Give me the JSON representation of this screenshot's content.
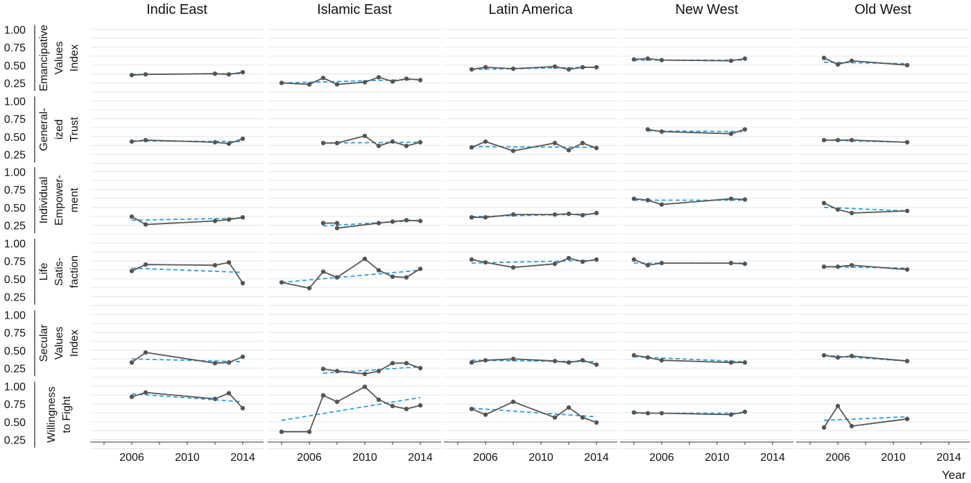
{
  "chart_data": {
    "type": "line",
    "xlabel": "Year",
    "ylim": [
      0.1,
      1.1
    ],
    "xlim": [
      2003,
      2015.5
    ],
    "x_ticks": [
      "2006",
      "2010",
      "2014"
    ],
    "y_ticks": [
      "1.00",
      "0.75",
      "0.50",
      "0.25"
    ],
    "regions": [
      "Indic East",
      "Islamic East",
      "Latin America",
      "New West",
      "Old West"
    ],
    "indicators": [
      [
        "Emancipative",
        "Values",
        "Index"
      ],
      [
        "General-",
        "ized",
        "Trust"
      ],
      [
        "Individual",
        "Empower-",
        "ment"
      ],
      [
        "Life",
        "Satis-",
        "faction"
      ],
      [
        "Secular",
        "Values",
        "Index"
      ],
      [
        "Willingness",
        "to Fight"
      ]
    ],
    "colors": {
      "observed": "#555555",
      "trend": "#2aa0d8"
    },
    "series": {
      "Indic East": [
        {
          "x": [
            2006,
            2007,
            2012,
            2013,
            2014
          ],
          "y": [
            0.36,
            0.37,
            0.38,
            0.37,
            0.4
          ],
          "trend": [
            [
              2006,
              0.37
            ],
            [
              2014,
              0.38
            ]
          ]
        },
        {
          "x": [
            2006,
            2007,
            2012,
            2013,
            2014
          ],
          "y": [
            0.43,
            0.45,
            0.42,
            0.4,
            0.47
          ],
          "trend": [
            [
              2006,
              0.44
            ],
            [
              2014,
              0.43
            ]
          ]
        },
        {
          "x": [
            2006,
            2007,
            2012,
            2013,
            2014
          ],
          "y": [
            0.37,
            0.26,
            0.31,
            0.33,
            0.36
          ],
          "trend": [
            [
              2006,
              0.32
            ],
            [
              2014,
              0.35
            ]
          ]
        },
        {
          "x": [
            2006,
            2007,
            2012,
            2013,
            2014
          ],
          "y": [
            0.61,
            0.7,
            0.69,
            0.73,
            0.44
          ],
          "trend": [
            [
              2006,
              0.65
            ],
            [
              2014,
              0.59
            ]
          ]
        },
        {
          "x": [
            2006,
            2007,
            2012,
            2013,
            2014
          ],
          "y": [
            0.33,
            0.47,
            0.32,
            0.33,
            0.41
          ],
          "trend": [
            [
              2006,
              0.38
            ],
            [
              2014,
              0.34
            ]
          ]
        },
        {
          "x": [
            2006,
            2007,
            2012,
            2013,
            2014
          ],
          "y": [
            0.85,
            0.91,
            0.82,
            0.9,
            0.69
          ],
          "trend": [
            [
              2006,
              0.89
            ],
            [
              2014,
              0.78
            ]
          ]
        }
      ],
      "Islamic East": [
        {
          "x": [
            2004,
            2006,
            2007,
            2008,
            2010,
            2011,
            2012,
            2013,
            2014
          ],
          "y": [
            0.25,
            0.23,
            0.32,
            0.23,
            0.26,
            0.33,
            0.27,
            0.31,
            0.29
          ],
          "trend": [
            [
              2004,
              0.25
            ],
            [
              2014,
              0.3
            ]
          ]
        },
        {
          "x": [
            2007,
            2008,
            2010,
            2011,
            2012,
            2013,
            2014
          ],
          "y": [
            0.41,
            0.41,
            0.51,
            0.37,
            0.43,
            0.37,
            0.42
          ],
          "trend": [
            [
              2007,
              0.41
            ],
            [
              2014,
              0.42
            ]
          ]
        },
        {
          "x": [
            2007,
            2008,
            2008,
            2011,
            2012,
            2013,
            2014
          ],
          "y": [
            0.28,
            0.28,
            0.21,
            0.28,
            0.3,
            0.32,
            0.31
          ],
          "trend": [
            [
              2007,
              0.24
            ],
            [
              2014,
              0.32
            ]
          ]
        },
        {
          "x": [
            2004,
            2006,
            2007,
            2008,
            2010,
            2011,
            2012,
            2013,
            2014
          ],
          "y": [
            0.45,
            0.37,
            0.6,
            0.52,
            0.78,
            0.62,
            0.53,
            0.52,
            0.64
          ],
          "trend": [
            [
              2004,
              0.45
            ],
            [
              2014,
              0.62
            ]
          ]
        },
        {
          "x": [
            2007,
            2008,
            2010,
            2011,
            2012,
            2013,
            2014
          ],
          "y": [
            0.24,
            0.21,
            0.17,
            0.21,
            0.32,
            0.32,
            0.25
          ],
          "trend": [
            [
              2007,
              0.18
            ],
            [
              2014,
              0.27
            ]
          ]
        },
        {
          "x": [
            2004,
            2006,
            2007,
            2008,
            2010,
            2011,
            2012,
            2013,
            2014
          ],
          "y": [
            0.36,
            0.36,
            0.87,
            0.78,
            0.99,
            0.81,
            0.72,
            0.68,
            0.73
          ],
          "trend": [
            [
              2004,
              0.52
            ],
            [
              2014,
              0.84
            ]
          ]
        }
      ],
      "Latin America": [
        {
          "x": [
            2005,
            2006,
            2008,
            2011,
            2012,
            2013,
            2014
          ],
          "y": [
            0.44,
            0.47,
            0.45,
            0.48,
            0.44,
            0.47,
            0.47
          ],
          "trend": [
            [
              2005,
              0.44
            ],
            [
              2014,
              0.47
            ]
          ]
        },
        {
          "x": [
            2005,
            2006,
            2008,
            2011,
            2012,
            2013,
            2014
          ],
          "y": [
            0.35,
            0.43,
            0.3,
            0.41,
            0.31,
            0.41,
            0.34
          ],
          "trend": [
            [
              2005,
              0.36
            ],
            [
              2014,
              0.35
            ]
          ]
        },
        {
          "x": [
            2005,
            2006,
            2008,
            2011,
            2012,
            2013,
            2014
          ],
          "y": [
            0.36,
            0.36,
            0.4,
            0.4,
            0.41,
            0.39,
            0.42
          ],
          "trend": [
            [
              2005,
              0.37
            ],
            [
              2014,
              0.41
            ]
          ]
        },
        {
          "x": [
            2005,
            2006,
            2008,
            2011,
            2012,
            2013,
            2014
          ],
          "y": [
            0.77,
            0.73,
            0.66,
            0.71,
            0.79,
            0.74,
            0.77
          ],
          "trend": [
            [
              2005,
              0.72
            ],
            [
              2014,
              0.76
            ]
          ]
        },
        {
          "x": [
            2005,
            2006,
            2008,
            2011,
            2012,
            2013,
            2014
          ],
          "y": [
            0.33,
            0.36,
            0.38,
            0.35,
            0.33,
            0.36,
            0.3
          ],
          "trend": [
            [
              2005,
              0.36
            ],
            [
              2014,
              0.34
            ]
          ]
        },
        {
          "x": [
            2005,
            2006,
            2008,
            2011,
            2012,
            2013,
            2014
          ],
          "y": [
            0.68,
            0.6,
            0.78,
            0.56,
            0.7,
            0.56,
            0.49
          ],
          "trend": [
            [
              2005,
              0.69
            ],
            [
              2014,
              0.57
            ]
          ]
        }
      ],
      "New West": [
        {
          "x": [
            2004,
            2005,
            2006,
            2011,
            2012
          ],
          "y": [
            0.58,
            0.59,
            0.57,
            0.56,
            0.59
          ],
          "trend": [
            [
              2004,
              0.57
            ],
            [
              2012,
              0.57
            ]
          ]
        },
        {
          "x": [
            2005,
            2006,
            2011,
            2012
          ],
          "y": [
            0.6,
            0.57,
            0.54,
            0.6
          ],
          "trend": [
            [
              2005,
              0.58
            ],
            [
              2012,
              0.57
            ]
          ]
        },
        {
          "x": [
            2004,
            2005,
            2006,
            2011,
            2012
          ],
          "y": [
            0.62,
            0.6,
            0.54,
            0.62,
            0.61
          ],
          "trend": [
            [
              2004,
              0.6
            ],
            [
              2012,
              0.6
            ]
          ]
        },
        {
          "x": [
            2004,
            2005,
            2006,
            2011,
            2012
          ],
          "y": [
            0.77,
            0.69,
            0.72,
            0.72,
            0.71
          ],
          "trend": [
            [
              2004,
              0.72
            ],
            [
              2012,
              0.72
            ]
          ]
        },
        {
          "x": [
            2004,
            2005,
            2006,
            2011,
            2012
          ],
          "y": [
            0.43,
            0.4,
            0.36,
            0.33,
            0.33
          ],
          "trend": [
            [
              2004,
              0.41
            ],
            [
              2012,
              0.34
            ]
          ]
        },
        {
          "x": [
            2004,
            2005,
            2006,
            2011,
            2012
          ],
          "y": [
            0.63,
            0.62,
            0.62,
            0.6,
            0.64
          ],
          "trend": [
            [
              2004,
              0.62
            ],
            [
              2012,
              0.62
            ]
          ]
        }
      ],
      "Old West": [
        {
          "x": [
            2005,
            2006,
            2007,
            2011
          ],
          "y": [
            0.6,
            0.51,
            0.56,
            0.5
          ],
          "trend": [
            [
              2005,
              0.54
            ],
            [
              2011,
              0.52
            ]
          ]
        },
        {
          "x": [
            2005,
            2006,
            2007,
            2011
          ],
          "y": [
            0.45,
            0.45,
            0.45,
            0.42
          ],
          "trend": [
            [
              2005,
              0.45
            ],
            [
              2011,
              0.42
            ]
          ]
        },
        {
          "x": [
            2005,
            2006,
            2007,
            2011
          ],
          "y": [
            0.56,
            0.47,
            0.42,
            0.45
          ],
          "trend": [
            [
              2005,
              0.5
            ],
            [
              2011,
              0.45
            ]
          ]
        },
        {
          "x": [
            2005,
            2006,
            2007,
            2011
          ],
          "y": [
            0.67,
            0.67,
            0.69,
            0.63
          ],
          "trend": [
            [
              2005,
              0.67
            ],
            [
              2011,
              0.65
            ]
          ]
        },
        {
          "x": [
            2005,
            2006,
            2007,
            2011
          ],
          "y": [
            0.43,
            0.4,
            0.42,
            0.35
          ],
          "trend": [
            [
              2005,
              0.43
            ],
            [
              2011,
              0.35
            ]
          ]
        },
        {
          "x": [
            2005,
            2006,
            2007,
            2011
          ],
          "y": [
            0.42,
            0.72,
            0.44,
            0.54
          ],
          "trend": [
            [
              2005,
              0.52
            ],
            [
              2011,
              0.57
            ]
          ]
        }
      ]
    }
  }
}
